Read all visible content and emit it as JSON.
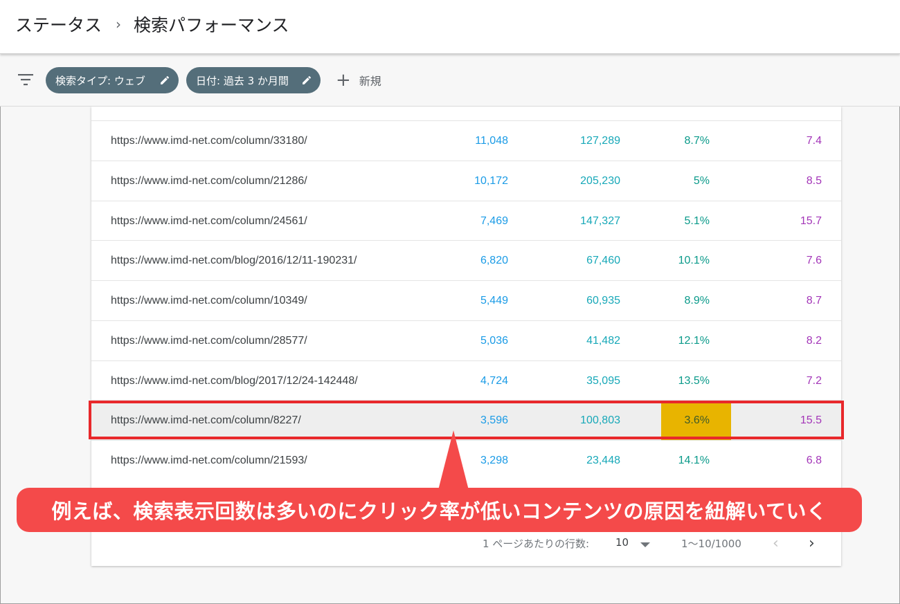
{
  "header": {
    "breadcrumb_root": "ステータス",
    "breadcrumb_separator": "›",
    "page_title": "検索パフォーマンス"
  },
  "filters": {
    "chip_search_type": "検索タイプ: ウェブ",
    "chip_date": "日付: 過去 3 か月間",
    "add_new_label": "新規"
  },
  "table": {
    "rows": [
      {
        "url": "https://www.imd-net.com/column/33180/",
        "clicks": "11,048",
        "impressions": "127,289",
        "ctr": "8.7%",
        "position": "7.4"
      },
      {
        "url": "https://www.imd-net.com/column/21286/",
        "clicks": "10,172",
        "impressions": "205,230",
        "ctr": "5%",
        "position": "8.5"
      },
      {
        "url": "https://www.imd-net.com/column/24561/",
        "clicks": "7,469",
        "impressions": "147,327",
        "ctr": "5.1%",
        "position": "15.7"
      },
      {
        "url": "https://www.imd-net.com/blog/2016/12/11-190231/",
        "clicks": "6,820",
        "impressions": "67,460",
        "ctr": "10.1%",
        "position": "7.6"
      },
      {
        "url": "https://www.imd-net.com/column/10349/",
        "clicks": "5,449",
        "impressions": "60,935",
        "ctr": "8.9%",
        "position": "8.7"
      },
      {
        "url": "https://www.imd-net.com/column/28577/",
        "clicks": "5,036",
        "impressions": "41,482",
        "ctr": "12.1%",
        "position": "8.2"
      },
      {
        "url": "https://www.imd-net.com/blog/2017/12/24-142448/",
        "clicks": "4,724",
        "impressions": "35,095",
        "ctr": "13.5%",
        "position": "7.2"
      },
      {
        "url": "https://www.imd-net.com/column/8227/",
        "clicks": "3,596",
        "impressions": "100,803",
        "ctr": "3.6%",
        "position": "15.5"
      },
      {
        "url": "https://www.imd-net.com/column/21593/",
        "clicks": "3,298",
        "impressions": "23,448",
        "ctr": "14.1%",
        "position": "6.8"
      }
    ]
  },
  "pagination": {
    "rows_per_page_label": "1 ページあたりの行数:",
    "rows_per_page_value": "10",
    "range": "1〜10/1000"
  },
  "callout": {
    "text": "例えば、検索表示回数は多いのにクリック率が低いコンテンツの原因を紐解いていく"
  },
  "colors": {
    "chip_bg": "#546e7a",
    "clicks": "#1a9be6",
    "impressions": "#17a8b8",
    "ctr": "#0a9a8a",
    "position": "#a335b8",
    "highlight_border": "#e8282b",
    "ctr_highlight": "#e8b400",
    "callout_bg": "#f44a4a"
  }
}
